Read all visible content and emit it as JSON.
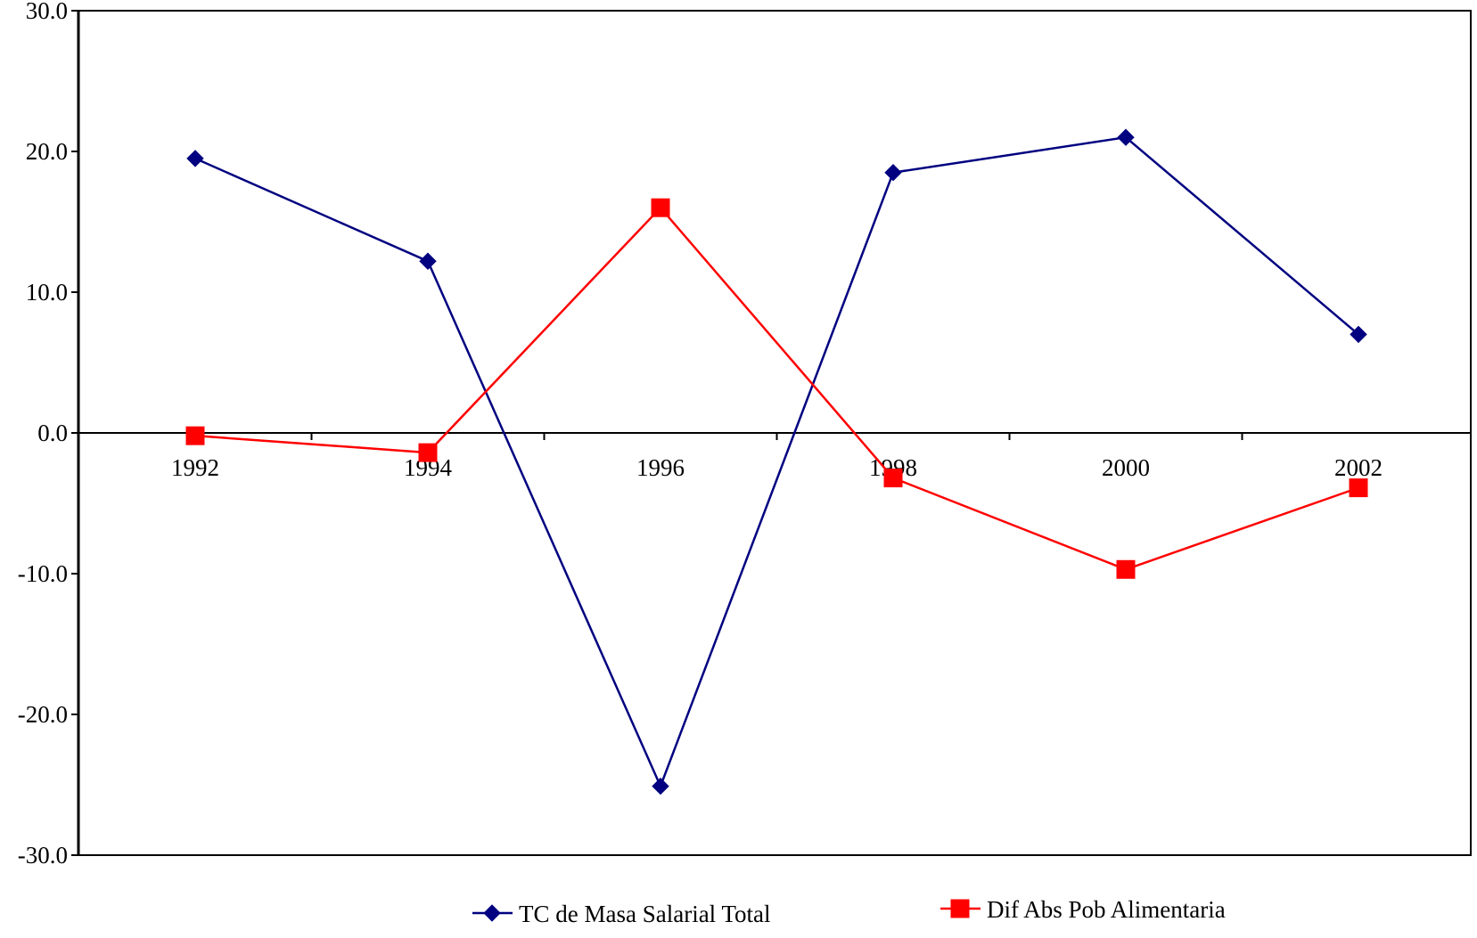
{
  "chart_data": {
    "type": "line",
    "title": "",
    "xlabel": "",
    "ylabel": "",
    "categories": [
      "1992",
      "1994",
      "1996",
      "1998",
      "2000",
      "2002"
    ],
    "ylim": [
      -30,
      30
    ],
    "yticks": [
      30,
      20,
      10,
      0,
      -10,
      -20,
      -30
    ],
    "ytick_labels": [
      "30.0",
      "20.0",
      "10.0",
      "0.0",
      "-10.0",
      "-20.0",
      "-30.0"
    ],
    "grid": false,
    "legend_position": "bottom",
    "series": [
      {
        "name": "TC de Masa Salarial Total",
        "color": "#000080",
        "marker": "diamond",
        "values": [
          19.5,
          12.2,
          -25.1,
          18.5,
          21.0,
          7.0
        ]
      },
      {
        "name": "Dif Abs Pob Alimentaria",
        "color": "#ff0000",
        "marker": "square",
        "values": [
          -0.2,
          -1.4,
          16.0,
          -3.2,
          -9.7,
          -3.9
        ]
      }
    ]
  }
}
